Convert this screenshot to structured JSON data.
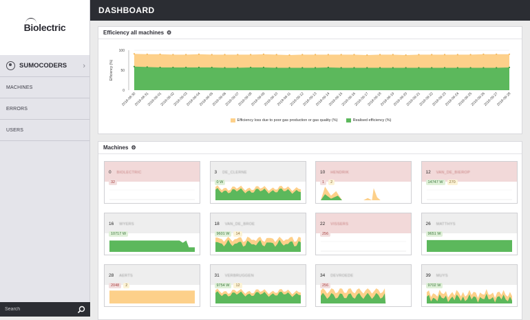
{
  "sidebar": {
    "logo_text": "Biolectric",
    "user_name": "SUMOCODERS",
    "nav": [
      "MACHINES",
      "ERRORS",
      "USERS"
    ],
    "search_placeholder": "Search"
  },
  "header": {
    "title": "DASHBOARD"
  },
  "efficiency_panel": {
    "title": "Efficiency all machines"
  },
  "machines_panel": {
    "title": "Machines"
  },
  "colors": {
    "loss": "#fdd08a",
    "realised": "#5cb85c",
    "topbar": "#2b2d33"
  },
  "chart_data": {
    "type": "area",
    "title": "Efficiency all machines",
    "ylabel": "Efficiency (%)",
    "ylim": [
      0,
      100
    ],
    "yticks": [
      0,
      50,
      100
    ],
    "x": [
      "2018-08-30",
      "2018-08-31",
      "2018-09-01",
      "2018-09-02",
      "2018-09-03",
      "2018-09-04",
      "2018-09-05",
      "2018-09-06",
      "2018-09-07",
      "2018-09-08",
      "2018-09-09",
      "2018-09-10",
      "2018-09-11",
      "2018-09-12",
      "2018-09-13",
      "2018-09-14",
      "2018-09-15",
      "2018-09-16",
      "2018-09-17",
      "2018-09-18",
      "2018-09-19",
      "2018-09-20",
      "2018-09-21",
      "2018-09-22",
      "2018-09-23",
      "2018-09-24",
      "2018-09-25",
      "2018-09-26",
      "2018-09-27",
      "2018-09-28"
    ],
    "series": [
      {
        "name": "Efficiency loss due to poor gas production or gas quality (%)",
        "values": [
          32,
          32,
          33,
          32,
          32,
          33,
          32,
          33,
          33,
          32,
          33,
          33,
          32,
          33,
          33,
          32,
          33,
          33,
          32,
          33,
          33,
          32,
          33,
          33,
          33,
          33,
          33,
          34,
          34,
          33
        ]
      },
      {
        "name": "Realised efficiency (%)",
        "values": [
          59,
          58,
          57,
          57,
          57,
          57,
          57,
          56,
          56,
          57,
          57,
          56,
          56,
          56,
          56,
          57,
          56,
          56,
          56,
          56,
          56,
          56,
          56,
          56,
          56,
          56,
          56,
          56,
          56,
          57
        ]
      }
    ],
    "stacked": true,
    "legend": "bottom"
  },
  "machines": [
    {
      "id": "0",
      "name": "BIOLECTRIC",
      "error": true,
      "badges": [
        {
          "type": "errb",
          "text": "32"
        }
      ],
      "chart": "empty"
    },
    {
      "id": "3",
      "name": "DE_CLERNE",
      "error": false,
      "badges": [
        {
          "type": "power",
          "text": "0 W"
        }
      ],
      "chart": "green_wavy"
    },
    {
      "id": "10",
      "name": "HENDRIK",
      "error": true,
      "badges": [
        {
          "type": "errb",
          "text": "1"
        },
        {
          "type": "warn",
          "text": "2"
        }
      ],
      "chart": "spiky"
    },
    {
      "id": "12",
      "name": "VAN_DE_BIEROP",
      "error": true,
      "badges": [
        {
          "type": "power",
          "text": "14747 W"
        },
        {
          "type": "warn",
          "text": "270"
        }
      ],
      "chart": "empty"
    },
    {
      "id": "16",
      "name": "WYERS",
      "error": false,
      "badges": [
        {
          "type": "power",
          "text": "10717 W"
        }
      ],
      "chart": "green_flat_dip"
    },
    {
      "id": "18",
      "name": "VAN_DE_BROE",
      "error": false,
      "badges": [
        {
          "type": "power",
          "text": "9601 W"
        },
        {
          "type": "warn",
          "text": "14"
        }
      ],
      "chart": "green_wavy_orange"
    },
    {
      "id": "22",
      "name": "VISSERS",
      "error": true,
      "badges": [
        {
          "type": "errb",
          "text": "256"
        }
      ],
      "chart": "empty"
    },
    {
      "id": "26",
      "name": "MATTHYS",
      "error": false,
      "badges": [
        {
          "type": "power",
          "text": "9651 W"
        }
      ],
      "chart": "green_full"
    },
    {
      "id": "28",
      "name": "AERTS",
      "error": false,
      "badges": [
        {
          "type": "errb",
          "text": "2048"
        },
        {
          "type": "warn",
          "text": "2"
        }
      ],
      "chart": "orange_full"
    },
    {
      "id": "31",
      "name": "VERBRUGGEN",
      "error": false,
      "badges": [
        {
          "type": "power",
          "text": "9754 W"
        },
        {
          "type": "warn",
          "text": "12"
        }
      ],
      "chart": "green_wavy"
    },
    {
      "id": "34",
      "name": "DEVROEDE",
      "error": false,
      "badges": [
        {
          "type": "errb",
          "text": "256"
        }
      ],
      "chart": "orange_green_drop"
    },
    {
      "id": "39",
      "name": "MUYS",
      "error": false,
      "badges": [
        {
          "type": "power",
          "text": "9702 W"
        }
      ],
      "chart": "mixed_wavy"
    }
  ]
}
